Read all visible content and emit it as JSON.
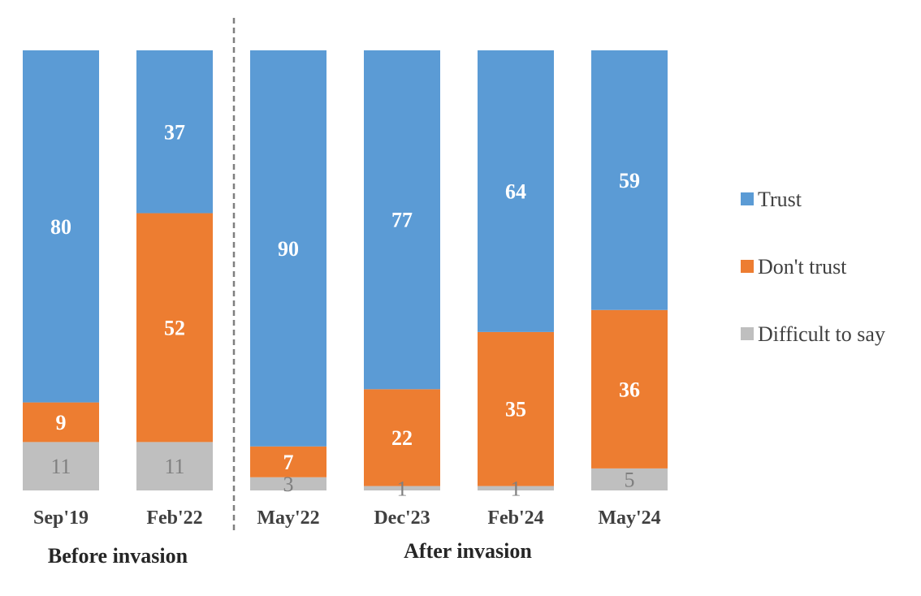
{
  "chart_data": {
    "type": "bar",
    "stacked": true,
    "percent_stacked": true,
    "categories": [
      "Sep'19",
      "Feb'22",
      "May'22",
      "Dec'23",
      "Feb'24",
      "May'24"
    ],
    "series": [
      {
        "name": "Difficult to say",
        "color": "#bfbfbf",
        "values": [
          11,
          11,
          3,
          1,
          1,
          5
        ],
        "label_style": "grey"
      },
      {
        "name": "Don't trust",
        "color": "#ed7d31",
        "values": [
          9,
          52,
          7,
          22,
          35,
          36
        ],
        "label_style": "white"
      },
      {
        "name": "Trust",
        "color": "#5b9bd5",
        "values": [
          80,
          37,
          90,
          77,
          64,
          59
        ],
        "label_style": "white"
      }
    ],
    "legend_order": [
      "Trust",
      "Don't trust",
      "Difficult to say"
    ],
    "legend_position": "right",
    "groups": [
      {
        "label": "Before invasion",
        "categories": [
          "Sep'19",
          "Feb'22"
        ]
      },
      {
        "label": "After invasion",
        "categories": [
          "May'22",
          "Dec'23",
          "Feb'24",
          "May'24"
        ]
      }
    ],
    "divider_after_category": "Feb'22",
    "ylim": [
      0,
      100
    ],
    "grid": false
  }
}
